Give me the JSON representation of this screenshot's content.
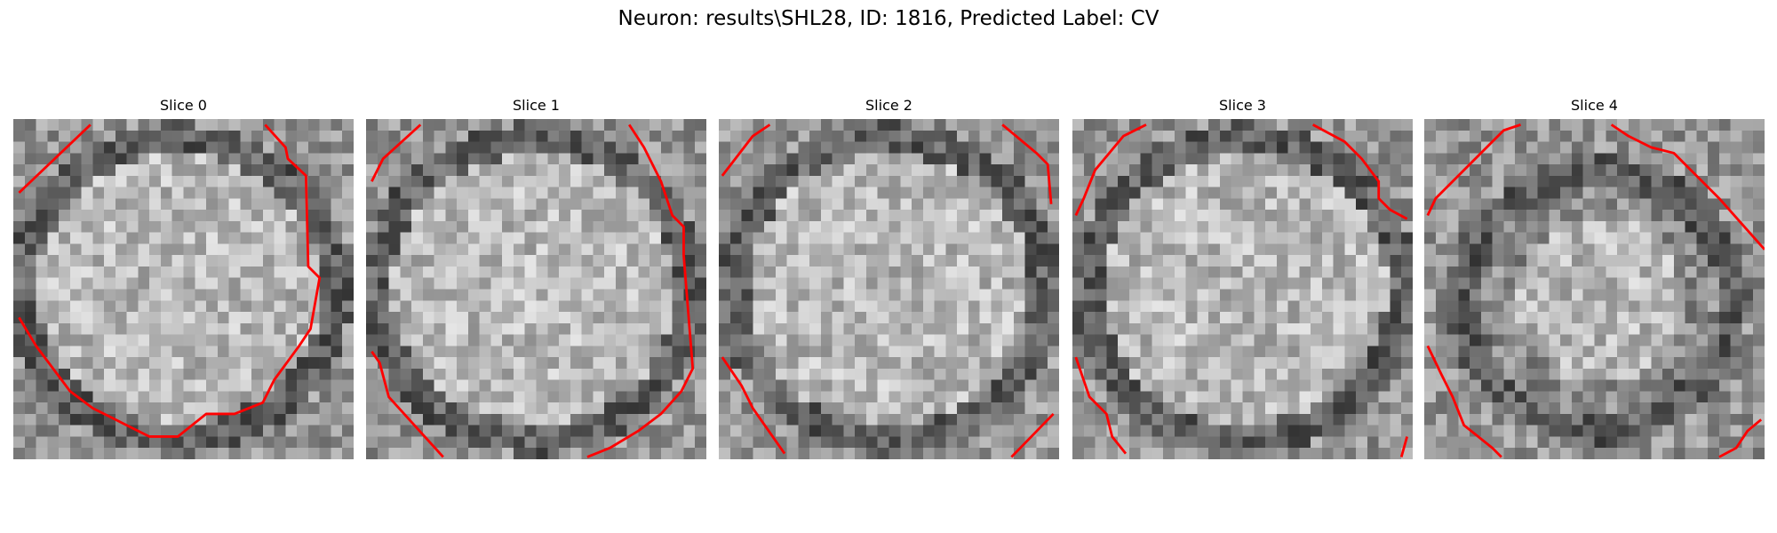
{
  "title": "Neuron: results\\SHL28, ID: 1816, Predicted Label: CV",
  "panels": [
    {
      "title": "Slice 0"
    },
    {
      "title": "Slice 1"
    },
    {
      "title": "Slice 2"
    },
    {
      "title": "Slice 3"
    },
    {
      "title": "Slice 4"
    }
  ]
}
